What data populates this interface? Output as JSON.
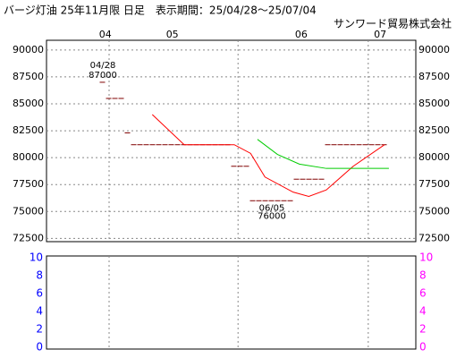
{
  "header": {
    "title": "バージ灯油 25年11月限 日足　表示期間：25/04/28～25/07/04",
    "company": "サンワード貿易株式会社"
  },
  "chart_data": [
    {
      "type": "line",
      "xlim": [
        0,
        59
      ],
      "xticks": [
        {
          "value": 9.4,
          "label": "04"
        },
        {
          "value": 20.1,
          "label": "05"
        },
        {
          "value": 40.7,
          "label": "06"
        },
        {
          "value": 53.3,
          "label": "07"
        }
      ],
      "xgrid": [
        10,
        30.6,
        51.4
      ],
      "ylim": [
        72200,
        90900
      ],
      "yticks": [
        72500,
        75000,
        77500,
        80000,
        82500,
        85000,
        87500,
        90000
      ],
      "grid": true,
      "series": [
        {
          "style": "daily-dash",
          "color": "#800000",
          "x": [
            9,
            10,
            11,
            12,
            13,
            14,
            15,
            16,
            17,
            18,
            19,
            20,
            21,
            22,
            23,
            24,
            25,
            26,
            27,
            28,
            29,
            30,
            31,
            32,
            33,
            34,
            35,
            36,
            37,
            38,
            39,
            40,
            41,
            42,
            43,
            44,
            45,
            46,
            47,
            48,
            49,
            50,
            51,
            52,
            53,
            54
          ],
          "values": [
            87000,
            85500,
            85500,
            85500,
            82300,
            81200,
            81200,
            81200,
            81200,
            81200,
            81200,
            81200,
            81200,
            81200,
            81200,
            81200,
            81200,
            81200,
            81200,
            81200,
            81200,
            79200,
            79200,
            79200,
            76000,
            76000,
            76000,
            76000,
            76000,
            76000,
            76000,
            78000,
            78000,
            78000,
            78000,
            78000,
            81200,
            81200,
            81200,
            81200,
            81200,
            81200,
            81200,
            81200,
            81200,
            81200
          ]
        },
        {
          "color": "#ff0000",
          "x": [
            16.9,
            22,
            30,
            32.6,
            34.9,
            39.4,
            41.9,
            44.7,
            49,
            54
          ],
          "values": [
            84000,
            81200,
            81200,
            80400,
            78200,
            76800,
            76400,
            77000,
            79200,
            81200
          ]
        },
        {
          "color": "#00cc00",
          "x": [
            33.7,
            36.9,
            40.4,
            44.7,
            54.7
          ],
          "values": [
            81700,
            80300,
            79400,
            79000,
            79000
          ]
        }
      ],
      "annotations": [
        {
          "text": "04/28",
          "x": 9,
          "value": 87000
        },
        {
          "text": "06/05",
          "x": 36,
          "value": 76000
        }
      ]
    },
    {
      "type": "bar",
      "xlim": [
        0,
        59
      ],
      "ylim": [
        -0.2,
        10.2
      ],
      "yticks": [
        0,
        2,
        4,
        6,
        8,
        10
      ],
      "color": "#0000ff",
      "y2lim": [
        -0.2,
        10.2
      ],
      "y2ticks": [
        0,
        2,
        4,
        6,
        8,
        10
      ],
      "color2": "#ff00ff"
    }
  ]
}
